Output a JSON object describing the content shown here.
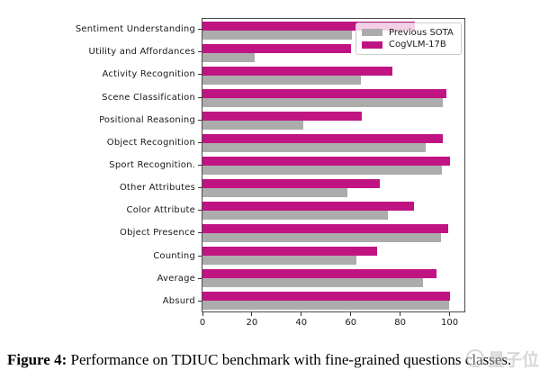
{
  "chart_data": {
    "type": "bar",
    "orientation": "horizontal",
    "title": "",
    "xlabel": "",
    "ylabel": "",
    "xlim": [
      0,
      106
    ],
    "xticks": [
      0,
      20,
      40,
      60,
      80,
      100
    ],
    "grid": false,
    "legend_position": "upper right",
    "categories": [
      "Sentiment Understanding",
      "Utility and Affordances",
      "Activity Recognition",
      "Scene Classification",
      "Positional Reasoning",
      "Object Recognition",
      "Sport Recognition.",
      "Other Attributes",
      "Color Attribute",
      "Object Presence",
      "Counting",
      "Average",
      "Absurd"
    ],
    "series": [
      {
        "name": "Previous SOTA",
        "color": "#ACACAC",
        "values": [
          60.6,
          21.3,
          64.0,
          97.2,
          40.8,
          90.3,
          97.0,
          58.5,
          75.2,
          96.7,
          62.2,
          89.1,
          99.8
        ]
      },
      {
        "name": "CogVLM-17B",
        "color": "#C01483",
        "values": [
          86.1,
          60.0,
          77.0,
          98.8,
          64.6,
          97.2,
          100.0,
          71.9,
          85.5,
          99.4,
          70.5,
          94.8,
          100.0
        ]
      }
    ]
  },
  "caption": {
    "figure_label": "Figure 4:",
    "text": "Performance on TDIUC benchmark with fine-grained questions classes."
  },
  "watermark": {
    "text": "量子位"
  },
  "colors": {
    "cogvlm": "#C01483",
    "previous_sota": "#ACACAC",
    "spine": "#4a4a4a",
    "legend_border": "#cccccc"
  }
}
